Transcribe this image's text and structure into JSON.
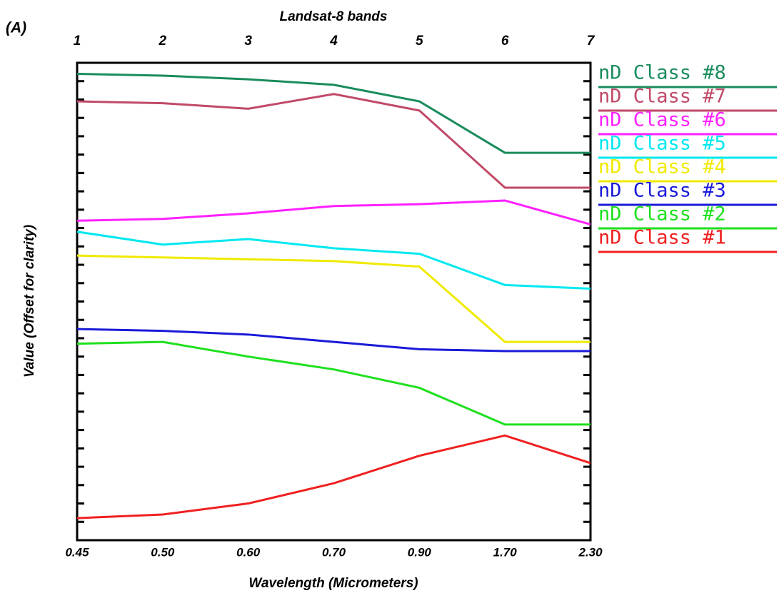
{
  "chart_data": {
    "type": "line",
    "panel_label": "(A)",
    "top_axis_label": "Landsat-8 bands",
    "x_label": "Wavelength (Micrometers)",
    "y_label": "Value (Offset for clarity)",
    "categories": [
      "0.45",
      "0.50",
      "0.60",
      "0.70",
      "0.90",
      "1.70",
      "2.30"
    ],
    "top_categories": [
      "1",
      "2",
      "3",
      "4",
      "5",
      "6",
      "7"
    ],
    "ylim": [
      0,
      26
    ],
    "yticks": [
      1,
      2,
      3,
      4,
      5,
      6,
      7,
      8,
      9,
      10,
      11,
      12,
      13,
      14,
      15,
      16,
      17,
      18,
      19,
      20,
      21,
      22,
      23,
      24,
      25
    ],
    "legend": "right",
    "series": [
      {
        "name": "nD Class #8",
        "color": "#1a8c5c",
        "values": [
          25.4,
          25.3,
          25.1,
          24.8,
          23.9,
          21.1,
          21.1
        ]
      },
      {
        "name": "nD Class #7",
        "color": "#c04a68",
        "values": [
          23.9,
          23.8,
          23.5,
          24.3,
          23.4,
          19.2,
          19.2
        ]
      },
      {
        "name": "nD Class #6",
        "color": "#ff20ff",
        "values": [
          17.4,
          17.5,
          17.8,
          18.2,
          18.3,
          18.5,
          17.2
        ]
      },
      {
        "name": "nD Class #5",
        "color": "#00e8f0",
        "values": [
          16.8,
          16.1,
          16.4,
          15.9,
          15.6,
          13.9,
          13.7
        ]
      },
      {
        "name": "nD Class #4",
        "color": "#f0ea00",
        "values": [
          15.5,
          15.4,
          15.3,
          15.2,
          14.9,
          10.8,
          10.8
        ]
      },
      {
        "name": "nD Class #3",
        "color": "#1a1ad8",
        "values": [
          11.5,
          11.4,
          11.2,
          10.8,
          10.4,
          10.3,
          10.3
        ]
      },
      {
        "name": "nD Class #2",
        "color": "#1ee01e",
        "values": [
          10.7,
          10.8,
          10.0,
          9.3,
          8.3,
          6.3,
          6.3
        ]
      },
      {
        "name": "nD Class #1",
        "color": "#f02020",
        "values": [
          1.2,
          1.4,
          2.0,
          3.1,
          4.6,
          5.7,
          4.2
        ]
      }
    ]
  }
}
